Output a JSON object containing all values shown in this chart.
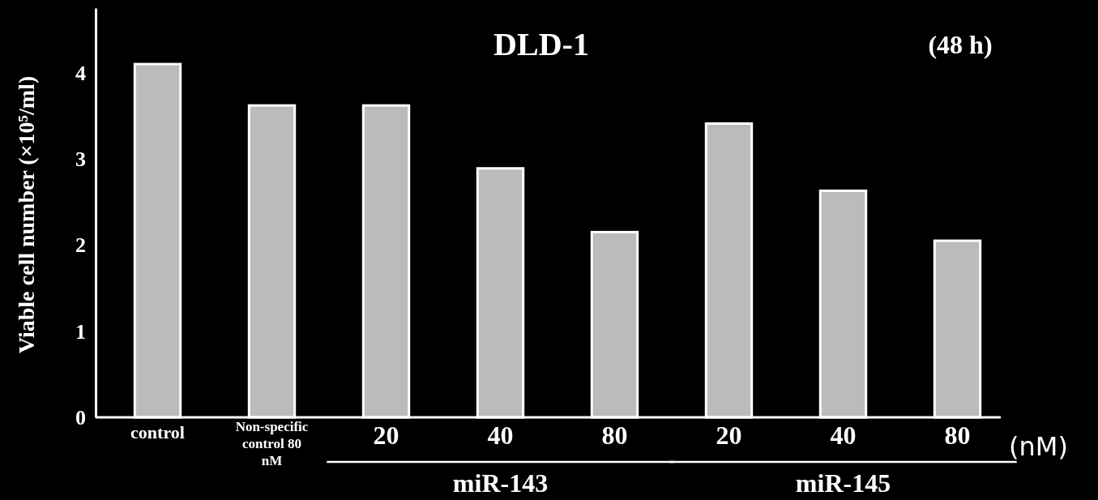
{
  "chart_data": {
    "type": "bar",
    "title": "DLD-1",
    "subtitle": "(48 h)",
    "ylabel": "Viable cell number (×10⁵/ml)",
    "categories": [
      "control",
      "Non-specific control 80 nM",
      "20",
      "40",
      "80",
      "20",
      "40",
      "80"
    ],
    "values": [
      4.1,
      3.62,
      3.62,
      2.89,
      2.15,
      3.41,
      2.63,
      2.05
    ],
    "color": "#bbbbbb",
    "ylim": [
      0,
      4.75
    ],
    "yticks": [
      0,
      1,
      2,
      3,
      4
    ],
    "grid": false,
    "annotations": [
      "miR-143",
      "miR-145",
      "(nM)"
    ]
  }
}
